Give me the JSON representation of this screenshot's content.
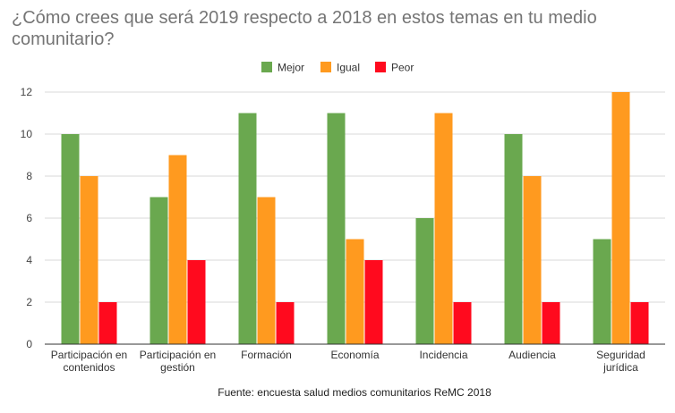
{
  "chart_data": {
    "type": "bar",
    "title": "¿Cómo crees que será 2019 respecto a 2018 en estos temas en tu medio comunitario?",
    "xlabel": "Fuente: encuesta salud medios comunitarios ReMC 2018",
    "ylabel": "",
    "ylim": [
      0,
      12
    ],
    "yticks": [
      0,
      2,
      4,
      6,
      8,
      10,
      12
    ],
    "grid": true,
    "legend_position": "top-center",
    "categories": [
      [
        "Participación en",
        "contenidos"
      ],
      [
        "Participación en",
        "gestión"
      ],
      [
        "Formación"
      ],
      [
        "Economía"
      ],
      [
        "Incidencia"
      ],
      [
        "Audiencia"
      ],
      [
        "Seguridad",
        "jurídica"
      ]
    ],
    "series": [
      {
        "name": "Mejor",
        "color": "#6aa84f",
        "values": [
          10,
          7,
          11,
          11,
          6,
          10,
          5
        ]
      },
      {
        "name": "Igual",
        "color": "#ff9a1f",
        "values": [
          8,
          9,
          7,
          5,
          11,
          8,
          12
        ]
      },
      {
        "name": "Peor",
        "color": "#ff0a1e",
        "values": [
          2,
          4,
          2,
          4,
          2,
          2,
          2
        ]
      }
    ]
  }
}
